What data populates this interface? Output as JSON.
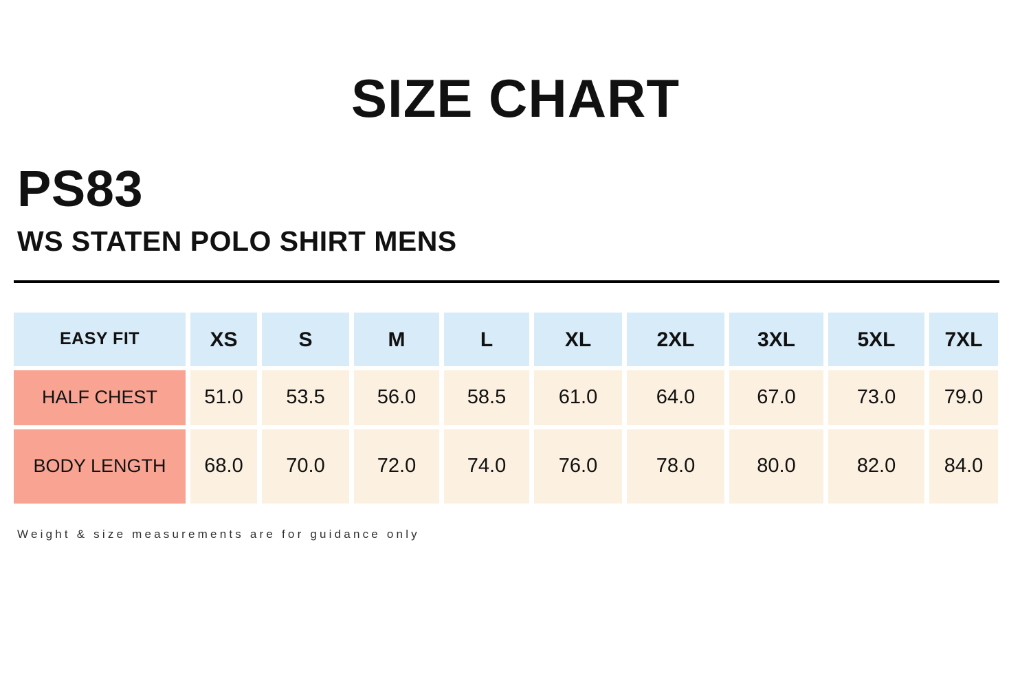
{
  "page": {
    "title": "SIZE CHART",
    "product_code": "PS83",
    "product_name": "WS STATEN POLO SHIRT MENS",
    "footnote": "Weight & size measurements are for guidance only"
  },
  "colors": {
    "header_bg": "#D7EBF8",
    "row_label_bg": "#F9A393",
    "value_cell_bg": "#FCF1E1",
    "rule": "#000000",
    "text": "#111111"
  },
  "chart_data": {
    "type": "table",
    "fit_label": "EASY FIT",
    "columns": [
      "XS",
      "S",
      "M",
      "L",
      "XL",
      "2XL",
      "3XL",
      "5XL",
      "7XL"
    ],
    "rows": [
      {
        "label": "HALF CHEST",
        "values": [
          "51.0",
          "53.5",
          "56.0",
          "58.5",
          "61.0",
          "64.0",
          "67.0",
          "73.0",
          "79.0"
        ]
      },
      {
        "label": "BODY LENGTH",
        "values": [
          "68.0",
          "70.0",
          "72.0",
          "74.0",
          "76.0",
          "78.0",
          "80.0",
          "82.0",
          "84.0"
        ]
      }
    ]
  }
}
